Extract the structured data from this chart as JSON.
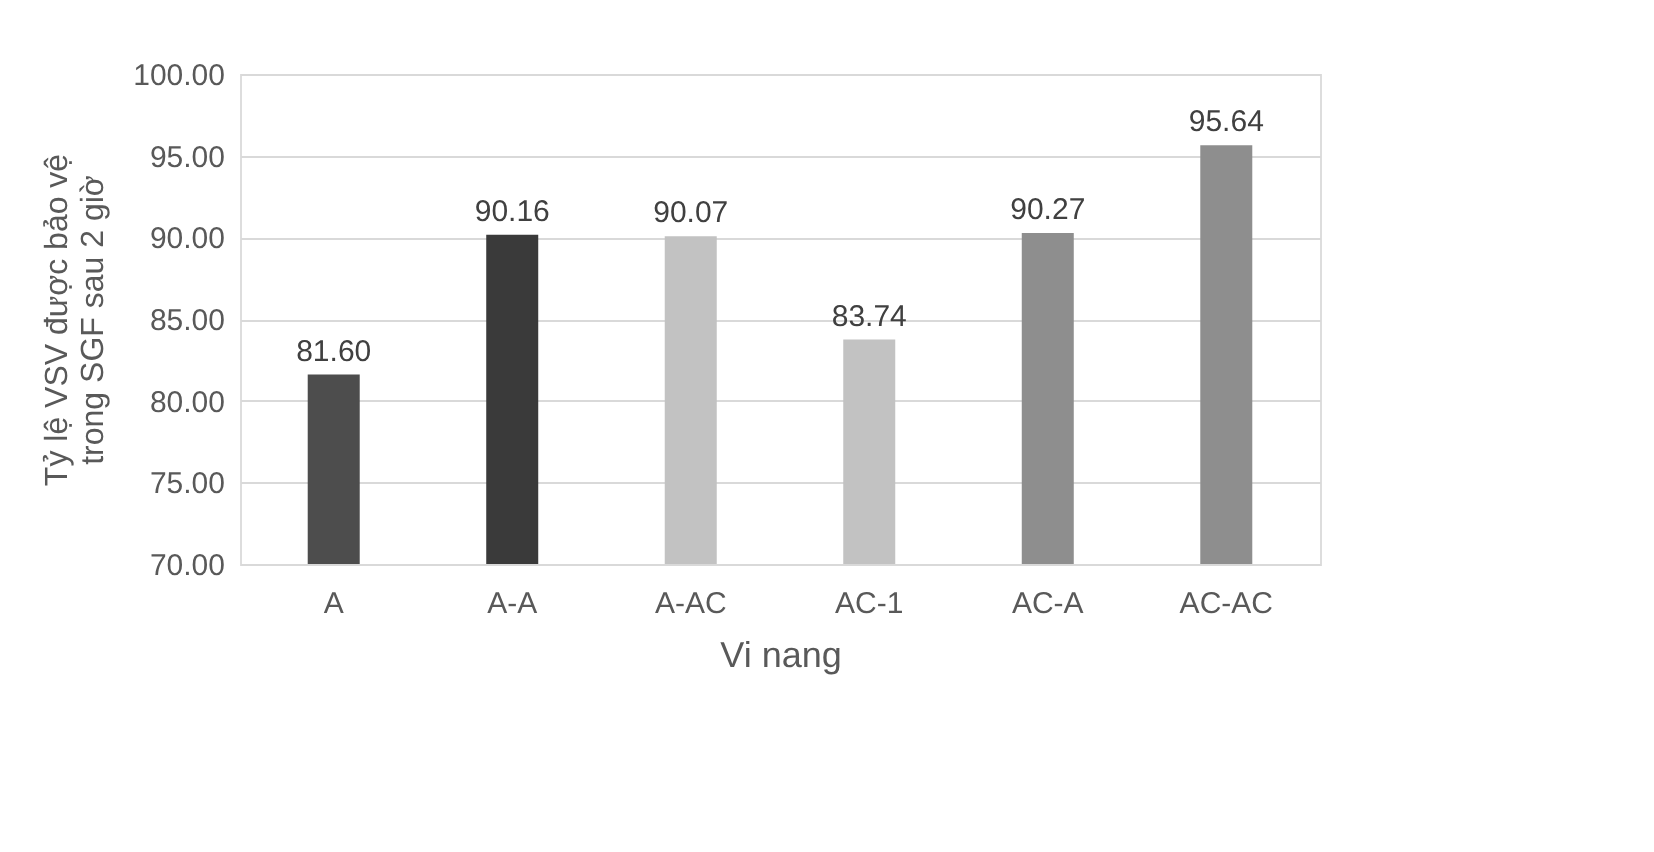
{
  "chart_data": {
    "type": "bar",
    "categories": [
      "A",
      "A-A",
      "A-AC",
      "AC-1",
      "AC-A",
      "AC-AC"
    ],
    "values": [
      81.6,
      90.16,
      90.07,
      83.74,
      90.27,
      95.64
    ],
    "colors": [
      "#4d4d4d",
      "#3a3a3a",
      "#c2c2c2",
      "#c2c2c2",
      "#8e8e8e",
      "#8e8e8e"
    ],
    "value_labels": [
      "81.60",
      "90.16",
      "90.07",
      "83.74",
      "90.27",
      "95.64"
    ],
    "xlabel": "Vi nang",
    "ylabel": "Tỷ lệ VSV được bảo vệ trong SGF sau 2 giờ",
    "ylim": [
      70,
      100
    ],
    "yticks": [
      {
        "value": 70,
        "label": "70.00"
      },
      {
        "value": 75,
        "label": "75.00"
      },
      {
        "value": 80,
        "label": "80.00"
      },
      {
        "value": 85,
        "label": "85.00"
      },
      {
        "value": 90,
        "label": "90.00"
      },
      {
        "value": 95,
        "label": "95.00"
      },
      {
        "value": 100,
        "label": "100.00"
      }
    ],
    "grid": "y",
    "legend": false
  }
}
